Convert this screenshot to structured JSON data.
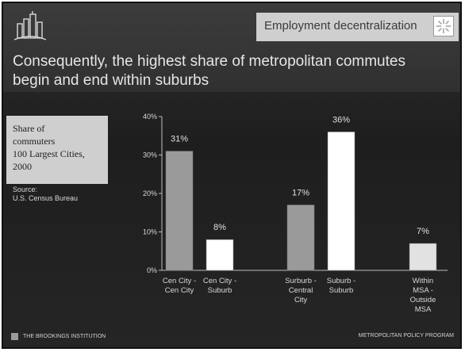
{
  "header": {
    "section_label": "Employment decentralization",
    "logo_icon": "city-skyline-logo-icon",
    "section_icon": "starburst-icon"
  },
  "title": {
    "line1": "Consequently, the highest share of metropolitan commutes",
    "line2": "begin and end within suburbs"
  },
  "legend": {
    "lines": [
      "Share of",
      "commuters",
      "100 Largest Cities,",
      "2000"
    ]
  },
  "source": {
    "label": "Source:",
    "text": "U.S. Census Bureau"
  },
  "footer": {
    "left": "THE BROOKINGS INSTITUTION",
    "right": "METROPOLITAN POLICY PROGRAM"
  },
  "colors": {
    "bar_dark": "#9a9a9a",
    "bar_light": "#ffffff",
    "bar_lighter": "#e2e2e2"
  },
  "chart_data": {
    "type": "bar",
    "title": "",
    "xlabel": "",
    "ylabel": "",
    "ylim": [
      0,
      40
    ],
    "yticks": [
      "0%",
      "10%",
      "20%",
      "30%",
      "40%"
    ],
    "grid": false,
    "categories": [
      [
        "Cen City -",
        "Cen City"
      ],
      [
        "Cen City -",
        "Suburb"
      ],
      [
        "Surburb -",
        "Central",
        "City"
      ],
      [
        "Suburb -",
        "Suburb"
      ],
      [
        "Within",
        "MSA -",
        "Outside",
        "MSA"
      ]
    ],
    "values": [
      31,
      8,
      17,
      36,
      7
    ],
    "labels": [
      "31%",
      "8%",
      "17%",
      "36%",
      "7%"
    ],
    "bar_colors": [
      "#9a9a9a",
      "#ffffff",
      "#9a9a9a",
      "#ffffff",
      "#e2e2e2"
    ]
  }
}
